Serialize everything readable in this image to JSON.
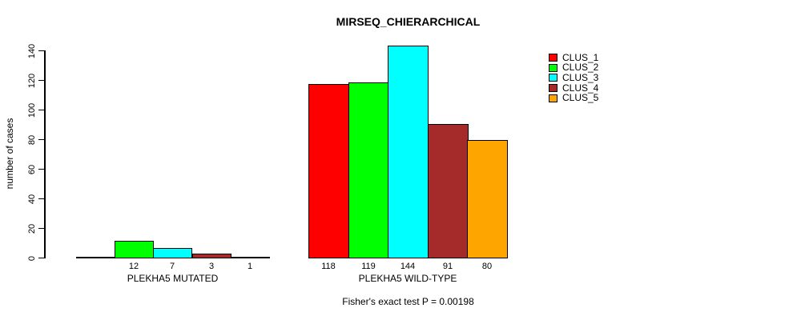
{
  "chart_data": {
    "type": "bar",
    "title": "MIRSEQ_CHIERARCHICAL",
    "ylabel": "number of cases",
    "xlabel": "",
    "ylim": [
      0,
      140
    ],
    "yticks": [
      0,
      20,
      40,
      60,
      80,
      100,
      120,
      140
    ],
    "grid": false,
    "legend_position": "top-right",
    "categories": [
      "PLEKHA5 MUTATED",
      "PLEKHA5 WILD-TYPE"
    ],
    "series": [
      {
        "name": "CLUS_1",
        "color": "#FF0000",
        "values": [
          0,
          118
        ]
      },
      {
        "name": "CLUS_2",
        "color": "#00FF00",
        "values": [
          12,
          119
        ]
      },
      {
        "name": "CLUS_3",
        "color": "#00FFFF",
        "values": [
          7,
          144
        ]
      },
      {
        "name": "CLUS_4",
        "color": "#A52A2A",
        "values": [
          3,
          91
        ]
      },
      {
        "name": "CLUS_5",
        "color": "#FFA500",
        "values": [
          1,
          80
        ]
      }
    ],
    "bar_value_labels": [
      [
        "",
        "12",
        "7",
        "3",
        "1"
      ],
      [
        "118",
        "119",
        "144",
        "91",
        "80"
      ]
    ],
    "annotation": "Fisher's exact test P = 0.00198"
  }
}
